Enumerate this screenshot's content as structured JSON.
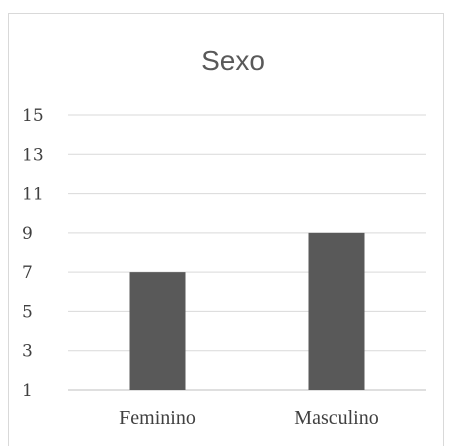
{
  "chart_data": {
    "type": "bar",
    "title": "Sexo",
    "categories": [
      "Feminino",
      "Masculino"
    ],
    "values": [
      7,
      9
    ],
    "ylim": [
      1,
      15
    ],
    "yticks": [
      "1",
      "3",
      "5",
      "7",
      "9",
      "11",
      "13",
      "15"
    ],
    "grid": true,
    "legend": "none",
    "bar_color": "#595959"
  }
}
